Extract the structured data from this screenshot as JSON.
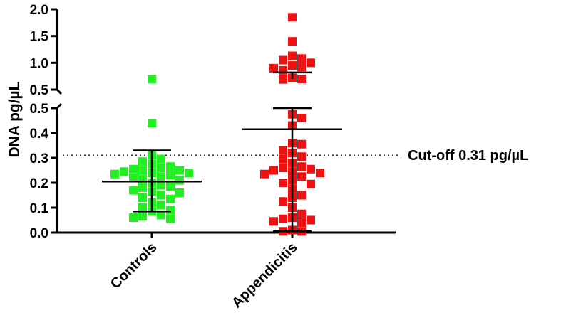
{
  "chart_data": {
    "type": "scatter",
    "ylabel": "DNA pg/µL",
    "y_axis_break": true,
    "lower_segment_ylim": [
      0.0,
      0.5
    ],
    "upper_segment_ylim": [
      0.5,
      2.0
    ],
    "lower_ticks": [
      "0.0",
      "0.1",
      "0.2",
      "0.3",
      "0.4",
      "0.5"
    ],
    "upper_ticks": [
      "0.5",
      "1.0",
      "1.5",
      "2.0"
    ],
    "categories": [
      "Controls",
      "Appendicitis"
    ],
    "cutoff": {
      "value": 0.31,
      "label": "Cut-off 0.31 pg/µL"
    },
    "series": [
      {
        "category": "Controls",
        "color": "#22ee22",
        "marker": "square",
        "mean": 0.205,
        "error_low": 0.085,
        "error_high": 0.33,
        "values": [
          0.7,
          0.44,
          0.31,
          0.295,
          0.285,
          0.275,
          0.265,
          0.26,
          0.255,
          0.25,
          0.25,
          0.245,
          0.24,
          0.24,
          0.235,
          0.23,
          0.225,
          0.22,
          0.215,
          0.21,
          0.2,
          0.19,
          0.185,
          0.18,
          0.17,
          0.165,
          0.16,
          0.15,
          0.14,
          0.135,
          0.12,
          0.11,
          0.1,
          0.09,
          0.085,
          0.07,
          0.065,
          0.06,
          0.055
        ]
      },
      {
        "category": "Appendicitis",
        "color": "#ee1111",
        "marker": "square",
        "mean": 0.415,
        "error_low": 0.005,
        "error_high": 0.5,
        "upper_mean": 0.82,
        "values": [
          1.85,
          1.4,
          1.13,
          1.08,
          1.05,
          1.0,
          0.95,
          0.92,
          0.9,
          0.86,
          0.72,
          0.7,
          0.69,
          0.475,
          0.46,
          0.43,
          0.36,
          0.355,
          0.33,
          0.32,
          0.305,
          0.295,
          0.28,
          0.265,
          0.26,
          0.255,
          0.25,
          0.245,
          0.24,
          0.235,
          0.225,
          0.21,
          0.2,
          0.195,
          0.175,
          0.15,
          0.14,
          0.125,
          0.1,
          0.075,
          0.06,
          0.055,
          0.05,
          0.045,
          0.04,
          0.01,
          0.005,
          0.005
        ]
      }
    ]
  }
}
